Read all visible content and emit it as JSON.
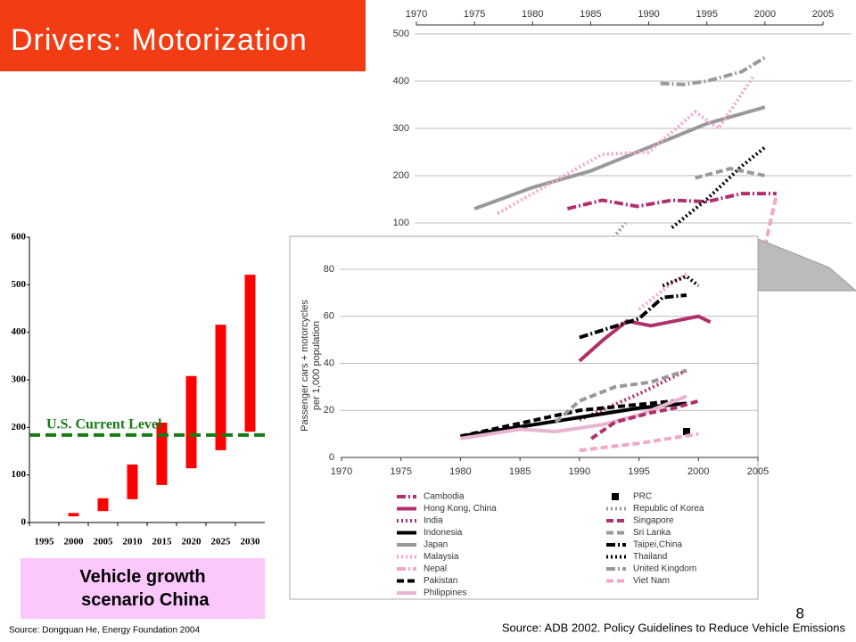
{
  "slide": {
    "title": "Drivers: Motorization",
    "caption": "Vehicle growth scenario China",
    "source_left": "Source: Dongquan He, Energy Foundation 2004",
    "source_right": "Source: ADB 2002. Policy Guidelines to Reduce Vehicle Emissions",
    "page": "8"
  },
  "chart_data": [
    {
      "type": "range_bar",
      "categories": [
        "1995",
        "2000",
        "2005",
        "2010",
        "2015",
        "2020",
        "2025",
        "2030"
      ],
      "low": [
        null,
        13,
        24,
        49,
        79,
        114,
        152,
        191
      ],
      "high": [
        null,
        20,
        51,
        122,
        210,
        308,
        416,
        521
      ],
      "color": "#ff0000",
      "ylim": [
        0,
        600
      ],
      "yticks": [
        0,
        100,
        200,
        300,
        400,
        500,
        600
      ],
      "reference": {
        "label": "U.S. Current Level",
        "value": 184,
        "color": "#1a7a1a"
      }
    },
    {
      "type": "line",
      "xlim": [
        1970,
        2005
      ],
      "xticks": [
        1970,
        1975,
        1980,
        1985,
        1990,
        1995,
        2000,
        2005
      ],
      "ylim": [
        0,
        500
      ],
      "yticks": [
        100,
        200,
        300,
        400,
        500
      ],
      "grid": true,
      "series": [
        {
          "color": "#999999",
          "style": "dashdot",
          "x": [
            1991,
            1993,
            1995,
            1998,
            2000
          ],
          "values": [
            395,
            393,
            400,
            420,
            450
          ]
        },
        {
          "color": "#999999",
          "style": "solid",
          "x": [
            1975,
            1980,
            1985,
            1990,
            1995,
            2000
          ],
          "values": [
            130,
            175,
            210,
            260,
            310,
            345
          ]
        },
        {
          "color": "#f4a6c8",
          "style": "dotted",
          "x": [
            1977,
            1982,
            1986,
            1990,
            1994,
            1996,
            1999
          ],
          "values": [
            120,
            190,
            245,
            250,
            335,
            300,
            410
          ]
        },
        {
          "color": "#b0306e",
          "style": "dashdot",
          "x": [
            1983,
            1986,
            1989,
            1992,
            1995,
            1998,
            2001
          ],
          "values": [
            130,
            148,
            135,
            148,
            145,
            162,
            162
          ]
        },
        {
          "color": "#000000",
          "style": "dotted",
          "x": [
            1992,
            1995,
            1998,
            2000
          ],
          "values": [
            90,
            150,
            220,
            260
          ]
        },
        {
          "color": "#999999",
          "style": "dashed",
          "x": [
            1994,
            1997,
            2000
          ],
          "values": [
            195,
            215,
            200
          ]
        },
        {
          "color": "#999999",
          "style": "dotted",
          "x": [
            1986,
            1988
          ],
          "values": [
            40,
            100
          ]
        },
        {
          "color": "#f4a6c8",
          "style": "dashed",
          "x": [
            2000,
            2001
          ],
          "values": [
            50,
            160
          ]
        }
      ]
    },
    {
      "type": "line",
      "xlim": [
        1970,
        2005
      ],
      "xticks": [
        1970,
        1975,
        1980,
        1985,
        1990,
        1995,
        2000,
        2005
      ],
      "ylim": [
        0,
        80
      ],
      "yticks": [
        0,
        20,
        40,
        60,
        80
      ],
      "grid": true,
      "ylabel": [
        "Passenger cars + motorcycles",
        "per 1,000 population"
      ],
      "series": [
        {
          "name": "Cambodia",
          "color": "#b0306e",
          "style": "dashdot",
          "x": [],
          "values": []
        },
        {
          "name": "Hong Kong, China",
          "color": "#b0306e",
          "style": "solid",
          "x": [
            1990,
            1992,
            1994,
            1996,
            1998,
            2000,
            2001
          ],
          "values": [
            41,
            50,
            58,
            56,
            58,
            60,
            57.5
          ]
        },
        {
          "name": "India",
          "color": "#b0306e",
          "style": "dotted",
          "x": [
            1990,
            1995,
            1999
          ],
          "values": [
            16,
            27,
            37
          ]
        },
        {
          "name": "Indonesia",
          "color": "#000000",
          "style": "solid",
          "x": [
            1980,
            1990,
            1995,
            1999
          ],
          "values": [
            9,
            17,
            21,
            23
          ]
        },
        {
          "name": "Japan",
          "color": "#999999",
          "style": "solid",
          "x": [],
          "values": []
        },
        {
          "name": "Malaysia",
          "color": "#f4a6c8",
          "style": "dotted",
          "x": [
            1995,
            1998,
            1999
          ],
          "values": [
            63,
            75,
            78
          ]
        },
        {
          "name": "Nepal",
          "color": "#f4a6c8",
          "style": "dashdot",
          "x": [],
          "values": []
        },
        {
          "name": "Pakistan",
          "color": "#000000",
          "style": "dashed",
          "x": [
            1980,
            1990,
            1998
          ],
          "values": [
            9,
            20,
            24
          ]
        },
        {
          "name": "Philippines",
          "color": "#e8b4d4",
          "style": "solid",
          "x": [
            1980,
            1985,
            1988,
            1992,
            1995,
            1999
          ],
          "values": [
            8,
            12,
            11,
            14,
            18,
            26
          ]
        },
        {
          "name": "PRC",
          "color": "#000000",
          "style": "marker",
          "x": [
            1999
          ],
          "values": [
            11
          ]
        },
        {
          "name": "Republic of Korea",
          "color": "#999999",
          "style": "dotted",
          "x": [],
          "values": []
        },
        {
          "name": "Singapore",
          "color": "#b0306e",
          "style": "dashed",
          "x": [
            1991,
            1993,
            1996,
            1998,
            2000
          ],
          "values": [
            8,
            15,
            19,
            21,
            24
          ]
        },
        {
          "name": "Sri Lanka",
          "color": "#999999",
          "style": "dashed",
          "x": [
            1988,
            1990,
            1993,
            1996,
            1999
          ],
          "values": [
            15,
            24,
            30,
            32,
            37
          ]
        },
        {
          "name": "Taipei,China",
          "color": "#000000",
          "style": "dashdot",
          "x": [
            1990,
            1995,
            1997,
            1999
          ],
          "values": [
            51,
            59,
            68,
            69
          ]
        },
        {
          "name": "Thailand",
          "color": "#000000",
          "style": "dotted",
          "x": [
            1997,
            1999,
            2000
          ],
          "values": [
            73,
            77,
            73
          ]
        },
        {
          "name": "United Kingdom",
          "color": "#999999",
          "style": "dashdot",
          "x": [],
          "values": []
        },
        {
          "name": "Viet Nam",
          "color": "#f4a6c8",
          "style": "dashed",
          "x": [
            1990,
            1995,
            2000
          ],
          "values": [
            3,
            6,
            10
          ]
        }
      ]
    }
  ]
}
